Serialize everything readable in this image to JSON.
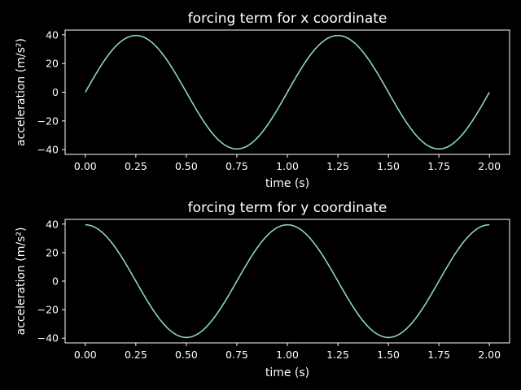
{
  "background_color": "#000000",
  "foreground_color": "#ffffff",
  "chart_data": [
    {
      "type": "line",
      "title": "forcing term for x coordinate",
      "xlabel": "time (s)",
      "ylabel": "acceleration (m/s²)",
      "xlim": [
        -0.1,
        2.1
      ],
      "ylim": [
        -43.3,
        43.3
      ],
      "grid": false,
      "x_ticks": [
        0.0,
        0.25,
        0.5,
        0.75,
        1.0,
        1.25,
        1.5,
        1.75,
        2.0
      ],
      "x_tick_labels": [
        "0.00",
        "0.25",
        "0.50",
        "0.75",
        "1.00",
        "1.25",
        "1.50",
        "1.75",
        "2.00"
      ],
      "y_ticks": [
        -40,
        -20,
        0,
        20,
        40
      ],
      "y_tick_labels": [
        "−40",
        "−20",
        "0",
        "20",
        "40"
      ],
      "series": [
        {
          "color": "#8dd3c7",
          "x": [
            0.0,
            0.125,
            0.25,
            0.375,
            0.5,
            0.625,
            0.75,
            0.875,
            1.0,
            1.125,
            1.25,
            1.375,
            1.5,
            1.625,
            1.75,
            1.875,
            2.0
          ],
          "y": [
            0.0,
            27.9,
            39.5,
            27.9,
            0.0,
            -27.9,
            -39.5,
            -27.9,
            0.0,
            27.9,
            39.5,
            27.9,
            0.0,
            -27.9,
            -39.5,
            -27.9,
            0.0
          ]
        }
      ]
    },
    {
      "type": "line",
      "title": "forcing term for y coordinate",
      "xlabel": "time (s)",
      "ylabel": "acceleration (m/s²)",
      "xlim": [
        -0.1,
        2.1
      ],
      "ylim": [
        -43.3,
        43.3
      ],
      "grid": false,
      "x_ticks": [
        0.0,
        0.25,
        0.5,
        0.75,
        1.0,
        1.25,
        1.5,
        1.75,
        2.0
      ],
      "x_tick_labels": [
        "0.00",
        "0.25",
        "0.50",
        "0.75",
        "1.00",
        "1.25",
        "1.50",
        "1.75",
        "2.00"
      ],
      "y_ticks": [
        -40,
        -20,
        0,
        20,
        40
      ],
      "y_tick_labels": [
        "−40",
        "−20",
        "0",
        "20",
        "40"
      ],
      "series": [
        {
          "color": "#8dd3c7",
          "x": [
            0.0,
            0.125,
            0.25,
            0.375,
            0.5,
            0.625,
            0.75,
            0.875,
            1.0,
            1.125,
            1.25,
            1.375,
            1.5,
            1.625,
            1.75,
            1.875,
            2.0
          ],
          "y": [
            39.5,
            27.9,
            0.0,
            -27.9,
            -39.5,
            -27.9,
            0.0,
            27.9,
            39.5,
            27.9,
            0.0,
            -27.9,
            -39.5,
            -27.9,
            0.0,
            27.9,
            39.5
          ]
        }
      ]
    }
  ]
}
